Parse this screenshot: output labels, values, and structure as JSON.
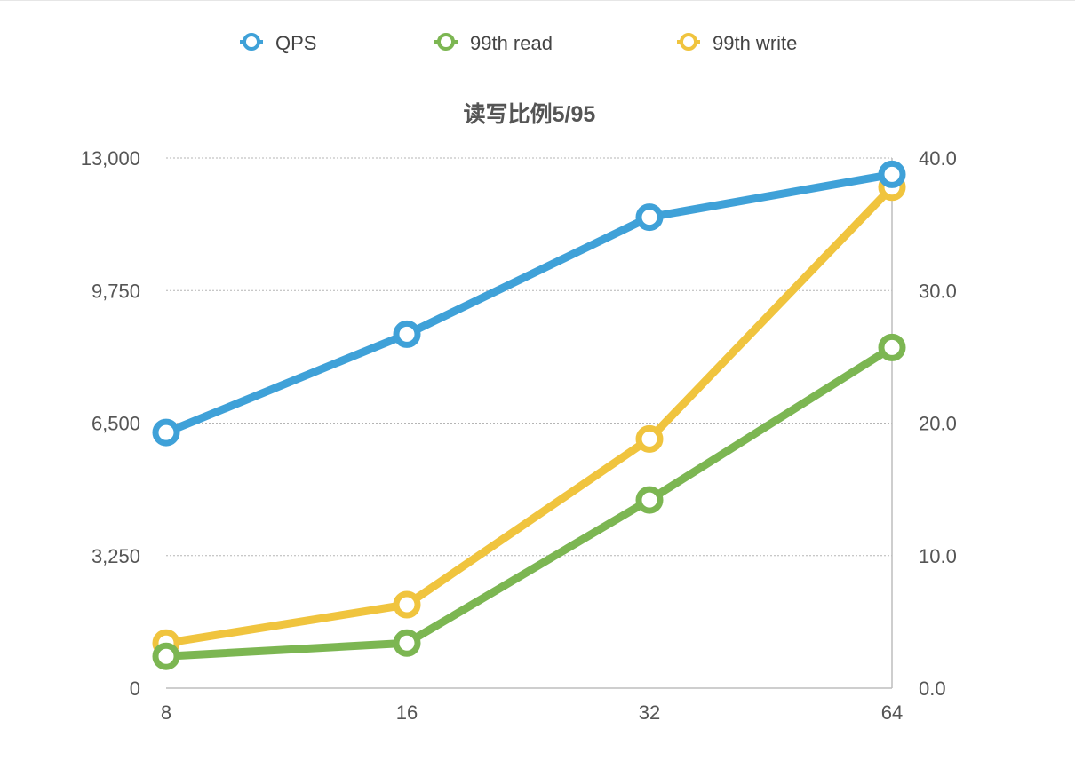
{
  "chart_data": {
    "type": "line",
    "title": "读写比例5/95",
    "xlabel": "",
    "x": [
      "8",
      "16",
      "32",
      "64"
    ],
    "y_left": {
      "ticks": [
        "0",
        "3,250",
        "6,500",
        "9,750",
        "13,000"
      ],
      "range": [
        0,
        13000
      ]
    },
    "y_right": {
      "ticks": [
        "0.0",
        "10.0",
        "20.0",
        "30.0",
        "40.0"
      ],
      "range": [
        0,
        40
      ]
    },
    "grid": true,
    "legend_position": "top",
    "series": [
      {
        "name": "QPS",
        "axis": "left",
        "color": "#3fa1d8",
        "values": [
          6270,
          8680,
          11550,
          12600
        ]
      },
      {
        "name": "99th read",
        "axis": "right",
        "color": "#7cb652",
        "values": [
          2.4,
          3.4,
          14.2,
          25.7
        ]
      },
      {
        "name": "99th write",
        "axis": "right",
        "color": "#f0c43e",
        "values": [
          3.4,
          6.3,
          18.8,
          37.8
        ]
      }
    ]
  }
}
